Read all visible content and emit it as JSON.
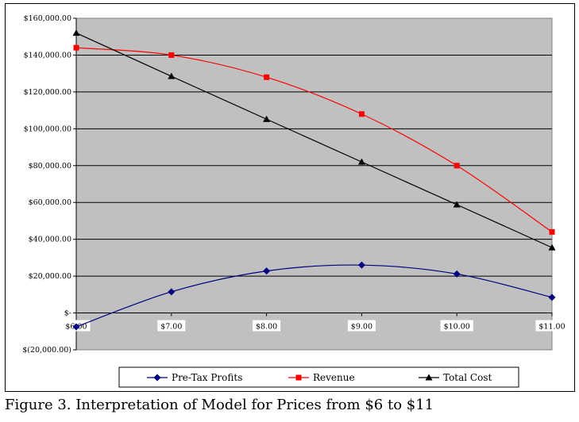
{
  "caption": "Figure 3. Interpretation of Model for Prices from $6 to $11",
  "chart_data": {
    "type": "line",
    "title": "",
    "xlabel": "",
    "ylabel": "",
    "categories": [
      "$6.00",
      "$7.00",
      "$8.00",
      "$9.00",
      "$10.00",
      "$11.00"
    ],
    "x": [
      6,
      7,
      8,
      9,
      10,
      11
    ],
    "ylim": [
      -20000,
      160000
    ],
    "y_ticks": [
      -20000,
      0,
      20000,
      40000,
      60000,
      80000,
      100000,
      120000,
      140000,
      160000
    ],
    "y_tick_labels": [
      "$(20,000.00)",
      "$-",
      "$20,000.00",
      "$40,000.00",
      "$60,000.00",
      "$80,000.00",
      "$100,000.00",
      "$120,000.00",
      "$140,000.00",
      "$160,000.00"
    ],
    "grid": true,
    "plot_background": "#c0c0c0",
    "legend_position": "bottom",
    "series": [
      {
        "name": "Pre-Tax Profits",
        "color": "#000080",
        "marker": "diamond",
        "values": [
          -7500,
          11500,
          22800,
          26000,
          21200,
          8500
        ]
      },
      {
        "name": "Revenue",
        "color": "#ff0000",
        "marker": "square",
        "values": [
          144000,
          140000,
          128000,
          108000,
          80000,
          44000
        ]
      },
      {
        "name": "Total Cost",
        "color": "#000000",
        "marker": "triangle",
        "values": [
          152000,
          128500,
          105200,
          82000,
          58800,
          35500
        ]
      }
    ]
  }
}
